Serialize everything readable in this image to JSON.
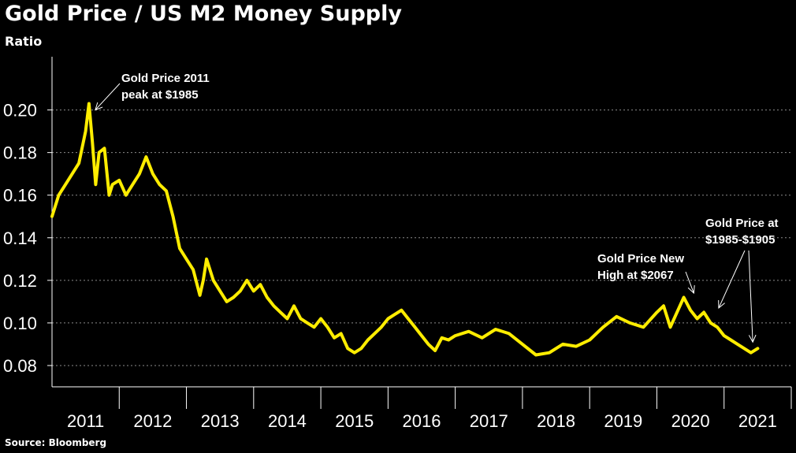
{
  "source": "Source: Bloomberg",
  "chart_data": {
    "type": "line",
    "title": "Gold Price / US M2 Money Supply",
    "subtitle": "Ratio",
    "xlabel": "",
    "ylabel": "Ratio",
    "x_range": [
      2011,
      2022
    ],
    "ylim": [
      0.07,
      0.225
    ],
    "y_ticks": [
      0.08,
      0.1,
      0.12,
      0.14,
      0.16,
      0.18,
      0.2
    ],
    "y_tick_labels": [
      "0.08",
      "0.10",
      "0.12",
      "0.14",
      "0.16",
      "0.18",
      "0.20"
    ],
    "x_tick_labels": [
      "2011",
      "2012",
      "2013",
      "2014",
      "2015",
      "2016",
      "2017",
      "2018",
      "2019",
      "2020",
      "2021"
    ],
    "grid": true,
    "series": [
      {
        "name": "Gold Price / US M2 Money Supply",
        "color": "#ffed00",
        "x": [
          2011.0,
          2011.1,
          2011.2,
          2011.3,
          2011.4,
          2011.5,
          2011.55,
          2011.6,
          2011.65,
          2011.7,
          2011.78,
          2011.85,
          2011.9,
          2012.0,
          2012.1,
          2012.2,
          2012.3,
          2012.4,
          2012.5,
          2012.6,
          2012.7,
          2012.8,
          2012.9,
          2013.0,
          2013.1,
          2013.2,
          2013.25,
          2013.3,
          2013.4,
          2013.5,
          2013.6,
          2013.7,
          2013.8,
          2013.9,
          2014.0,
          2014.1,
          2014.2,
          2014.3,
          2014.4,
          2014.5,
          2014.6,
          2014.7,
          2014.8,
          2014.9,
          2015.0,
          2015.1,
          2015.2,
          2015.3,
          2015.4,
          2015.5,
          2015.6,
          2015.7,
          2015.8,
          2015.9,
          2016.0,
          2016.1,
          2016.2,
          2016.3,
          2016.4,
          2016.5,
          2016.6,
          2016.7,
          2016.8,
          2016.9,
          2017.0,
          2017.2,
          2017.4,
          2017.6,
          2017.8,
          2018.0,
          2018.2,
          2018.4,
          2018.6,
          2018.8,
          2019.0,
          2019.2,
          2019.4,
          2019.6,
          2019.8,
          2020.0,
          2020.1,
          2020.2,
          2020.3,
          2020.4,
          2020.5,
          2020.6,
          2020.7,
          2020.8,
          2020.9,
          2021.0,
          2021.1,
          2021.2,
          2021.3,
          2021.4,
          2021.5
        ],
        "values": [
          0.15,
          0.16,
          0.165,
          0.17,
          0.175,
          0.19,
          0.203,
          0.185,
          0.165,
          0.18,
          0.182,
          0.16,
          0.165,
          0.167,
          0.16,
          0.165,
          0.17,
          0.178,
          0.17,
          0.165,
          0.162,
          0.15,
          0.135,
          0.13,
          0.125,
          0.113,
          0.12,
          0.13,
          0.12,
          0.115,
          0.11,
          0.112,
          0.115,
          0.12,
          0.115,
          0.118,
          0.112,
          0.108,
          0.105,
          0.102,
          0.108,
          0.102,
          0.1,
          0.098,
          0.102,
          0.098,
          0.093,
          0.095,
          0.088,
          0.086,
          0.088,
          0.092,
          0.095,
          0.098,
          0.102,
          0.104,
          0.106,
          0.102,
          0.098,
          0.094,
          0.09,
          0.087,
          0.093,
          0.092,
          0.094,
          0.096,
          0.093,
          0.097,
          0.095,
          0.09,
          0.085,
          0.086,
          0.09,
          0.089,
          0.092,
          0.098,
          0.103,
          0.1,
          0.098,
          0.105,
          0.108,
          0.098,
          0.105,
          0.112,
          0.106,
          0.102,
          0.105,
          0.1,
          0.098,
          0.094,
          0.092,
          0.09,
          0.088,
          0.086,
          0.088
        ]
      }
    ],
    "annotations": [
      {
        "name": "annotation-2011-peak",
        "lines": [
          "Gold Price 2011",
          "peak at $1985"
        ],
        "point": [
          2011.55,
          0.2
        ]
      },
      {
        "name": "annotation-new-high",
        "lines": [
          "Gold Price New",
          "High at $2067"
        ],
        "point": [
          2020.55,
          0.114
        ]
      },
      {
        "name": "annotation-1985-1905",
        "lines": [
          "Gold Price at",
          "$1985-$1905"
        ],
        "points": [
          [
            2020.85,
            0.107
          ],
          [
            2021.38,
            0.091
          ]
        ]
      }
    ]
  }
}
